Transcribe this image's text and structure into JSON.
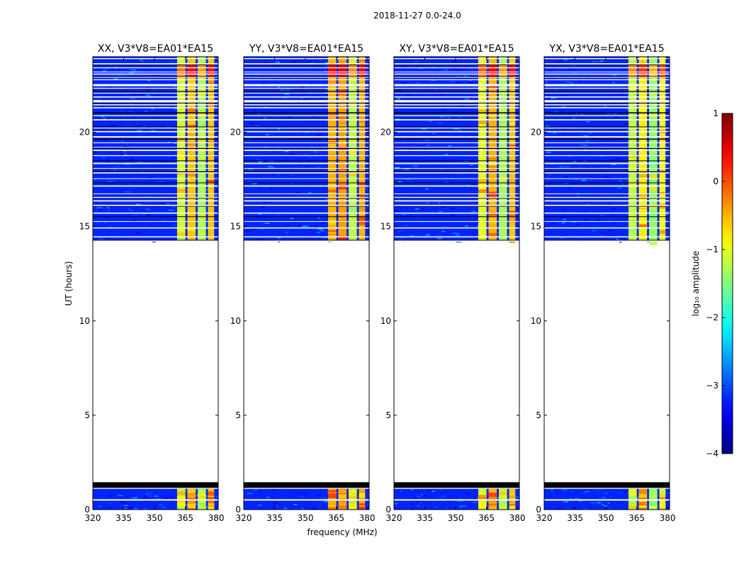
{
  "figure": {
    "suptitle": "2018-11-27 0.0-24.0"
  },
  "chart_data": {
    "type": "heatmap",
    "xlabel": "frequency (MHz)",
    "ylabel": "UT (hours)",
    "xlim": [
      320,
      381
    ],
    "ylim": [
      0,
      24
    ],
    "xticks": [
      320,
      335,
      350,
      365,
      380
    ],
    "yticks": [
      0,
      5,
      10,
      15,
      20
    ],
    "panels": [
      {
        "title": "XX, V3*V8=EA01*EA15",
        "band_levels": [
          -1.1,
          -0.6,
          -1.3,
          -0.6
        ]
      },
      {
        "title": "YY, V3*V8=EA01*EA15",
        "band_levels": [
          -0.5,
          -0.4,
          -1.2,
          -0.5
        ]
      },
      {
        "title": "XY, V3*V8=EA01*EA15",
        "band_levels": [
          -1.0,
          -0.5,
          -1.3,
          -0.6
        ]
      },
      {
        "title": "YX, V3*V8=EA01*EA15",
        "band_levels": [
          -1.2,
          -0.8,
          -1.4,
          -0.9
        ]
      }
    ],
    "data_segments_hours": [
      [
        0.0,
        1.1
      ],
      [
        14.2,
        24.0
      ]
    ],
    "band_frequencies_mhz": [
      [
        361,
        365
      ],
      [
        366,
        370
      ],
      [
        371,
        375
      ],
      [
        376,
        379
      ]
    ],
    "background_level": -3.2,
    "colorbar": {
      "label": "log₁₀ amplitude",
      "range": [
        -4,
        1
      ],
      "ticks": [
        "−4",
        "−3",
        "−2",
        "−1",
        "0",
        "1"
      ],
      "colormap": "jet"
    }
  }
}
